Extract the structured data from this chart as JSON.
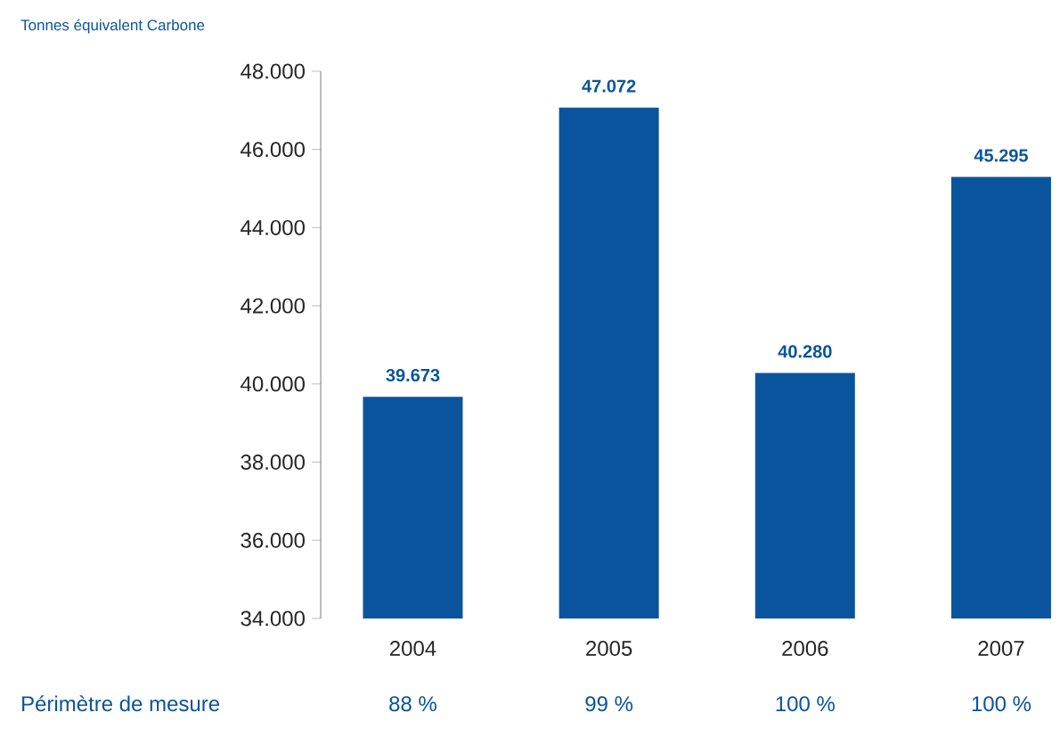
{
  "chart_data": {
    "type": "bar",
    "ylabel": "Tonnes équivalent Carbone",
    "categories": [
      "2004",
      "2005",
      "2006",
      "2007"
    ],
    "values": [
      39673,
      47072,
      40280,
      45295
    ],
    "value_labels": [
      "39.673",
      "47.072",
      "40.280",
      "45.295"
    ],
    "color": "#0a549e",
    "ylim": [
      34000,
      48000
    ],
    "yticks": [
      {
        "value": 34000,
        "label": "34.000"
      },
      {
        "value": 36000,
        "label": "36.000"
      },
      {
        "value": 38000,
        "label": "38.000"
      },
      {
        "value": 40000,
        "label": "40.000"
      },
      {
        "value": 42000,
        "label": "42.000"
      },
      {
        "value": 44000,
        "label": "44.000"
      },
      {
        "value": 46000,
        "label": "46.000"
      },
      {
        "value": 48000,
        "label": "48.000"
      }
    ],
    "annotations": [
      "Périmètre de mesure",
      "88 %",
      "99 %",
      "100 %",
      "100 %"
    ],
    "grid": false
  }
}
